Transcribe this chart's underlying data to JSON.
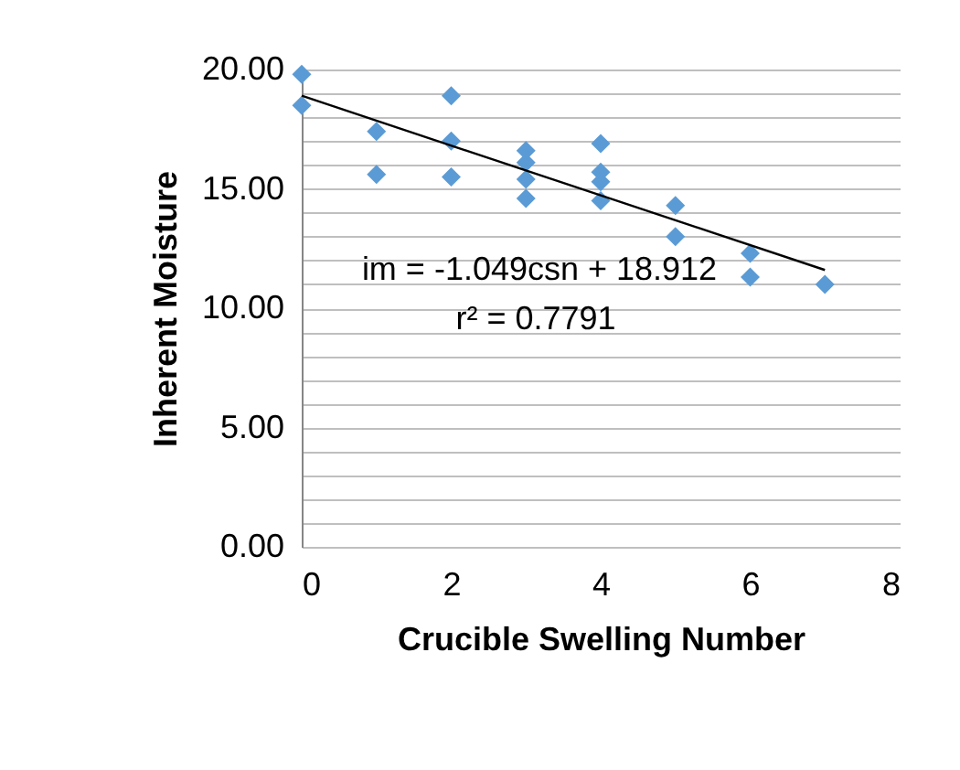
{
  "chart_data": {
    "type": "scatter",
    "xlabel": "Crucible Swelling Number",
    "ylabel": "Inherent Moisture",
    "xlim": [
      0,
      8
    ],
    "xticks": [
      0,
      2,
      4,
      6,
      8
    ],
    "ylim": [
      0,
      20
    ],
    "yticks": [
      {
        "value": 0,
        "label": "0.00"
      },
      {
        "value": 1,
        "label": null
      },
      {
        "value": 2,
        "label": null
      },
      {
        "value": 3,
        "label": null
      },
      {
        "value": 4,
        "label": null
      },
      {
        "value": 5,
        "label": "5.00"
      },
      {
        "value": 6,
        "label": null
      },
      {
        "value": 7,
        "label": null
      },
      {
        "value": 8,
        "label": null
      },
      {
        "value": 9,
        "label": null
      },
      {
        "value": 10,
        "label": "10.00"
      },
      {
        "value": 11,
        "label": null
      },
      {
        "value": 12,
        "label": null
      },
      {
        "value": 13,
        "label": null
      },
      {
        "value": 14,
        "label": null
      },
      {
        "value": 15,
        "label": "15.00"
      },
      {
        "value": 16,
        "label": null
      },
      {
        "value": 17,
        "label": null
      },
      {
        "value": 18,
        "label": null
      },
      {
        "value": 19,
        "label": null
      },
      {
        "value": 20,
        "label": "20.00"
      }
    ],
    "grid": "y",
    "series": [
      {
        "color": "#5b9bd5",
        "marker": "diamond",
        "x": [
          0,
          0,
          1,
          1,
          2,
          2,
          2,
          3,
          3,
          3,
          3,
          4,
          4,
          4,
          4,
          5,
          5,
          6,
          6,
          7
        ],
        "values": [
          19.8,
          18.5,
          17.4,
          15.6,
          18.9,
          17.0,
          15.5,
          16.6,
          16.1,
          15.4,
          14.6,
          16.9,
          15.7,
          15.3,
          14.5,
          14.3,
          13.0,
          12.3,
          11.3,
          11.0
        ]
      },
      {
        "type": "line",
        "color": "#000000",
        "x": [
          0,
          7
        ],
        "values": [
          18.9,
          11.6
        ]
      }
    ],
    "annotations": [
      "im = -1.049csn + 18.912",
      "r² = 0.7791"
    ]
  }
}
